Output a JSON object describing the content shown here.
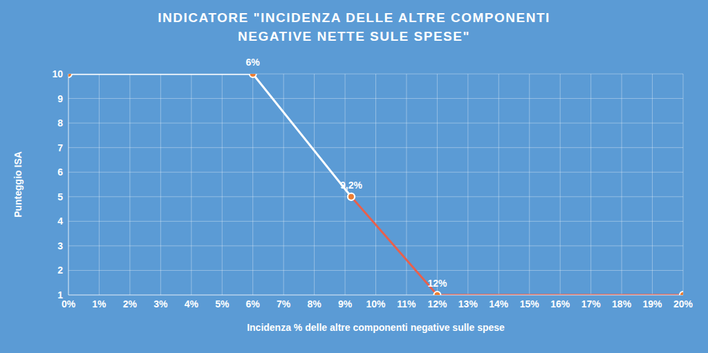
{
  "chart_data": {
    "type": "line",
    "title": "INDICATORE \"INCIDENZA DELLE ALTRE COMPONENTI\nNEGATIVE NETTE SULE SPESE\"",
    "x_label": "Incidenza % delle altre componenti  negative sulle spese",
    "y_label": "Punteggio ISA",
    "x": [
      0,
      6,
      9.2,
      12,
      20
    ],
    "series": [
      {
        "color": "#ffffff",
        "marker": "circle",
        "values": [
          10,
          10,
          5,
          null,
          null
        ]
      },
      {
        "color": "#e8604c",
        "marker": "circle",
        "values": [
          null,
          null,
          5,
          1,
          1
        ]
      }
    ],
    "xlim": [
      0,
      20
    ],
    "xticks": [
      {
        "value": 0,
        "label": "0%"
      },
      {
        "value": 1,
        "label": "1%"
      },
      {
        "value": 2,
        "label": "2%"
      },
      {
        "value": 3,
        "label": "3%"
      },
      {
        "value": 4,
        "label": "4%"
      },
      {
        "value": 5,
        "label": "5%"
      },
      {
        "value": 6,
        "label": "6%"
      },
      {
        "value": 7,
        "label": "7%"
      },
      {
        "value": 8,
        "label": "8%"
      },
      {
        "value": 9,
        "label": "9%"
      },
      {
        "value": 10,
        "label": "10%"
      },
      {
        "value": 11,
        "label": "11%"
      },
      {
        "value": 12,
        "label": "12%"
      },
      {
        "value": 13,
        "label": "13%"
      },
      {
        "value": 14,
        "label": "14%"
      },
      {
        "value": 15,
        "label": "15%"
      },
      {
        "value": 16,
        "label": "16%"
      },
      {
        "value": 17,
        "label": "17%"
      },
      {
        "value": 18,
        "label": "18%"
      },
      {
        "value": 19,
        "label": "19%"
      },
      {
        "value": 20,
        "label": "20%"
      }
    ],
    "ylim": [
      1,
      10
    ],
    "yticks": [
      1,
      2,
      3,
      4,
      5,
      6,
      7,
      8,
      9,
      10
    ],
    "grid": true,
    "annotations": [
      {
        "x": 6,
        "y": 10,
        "text": "6%"
      },
      {
        "x": 9.2,
        "y": 5,
        "text": "9,2%"
      },
      {
        "x": 12,
        "y": 1,
        "text": "12%"
      }
    ]
  }
}
